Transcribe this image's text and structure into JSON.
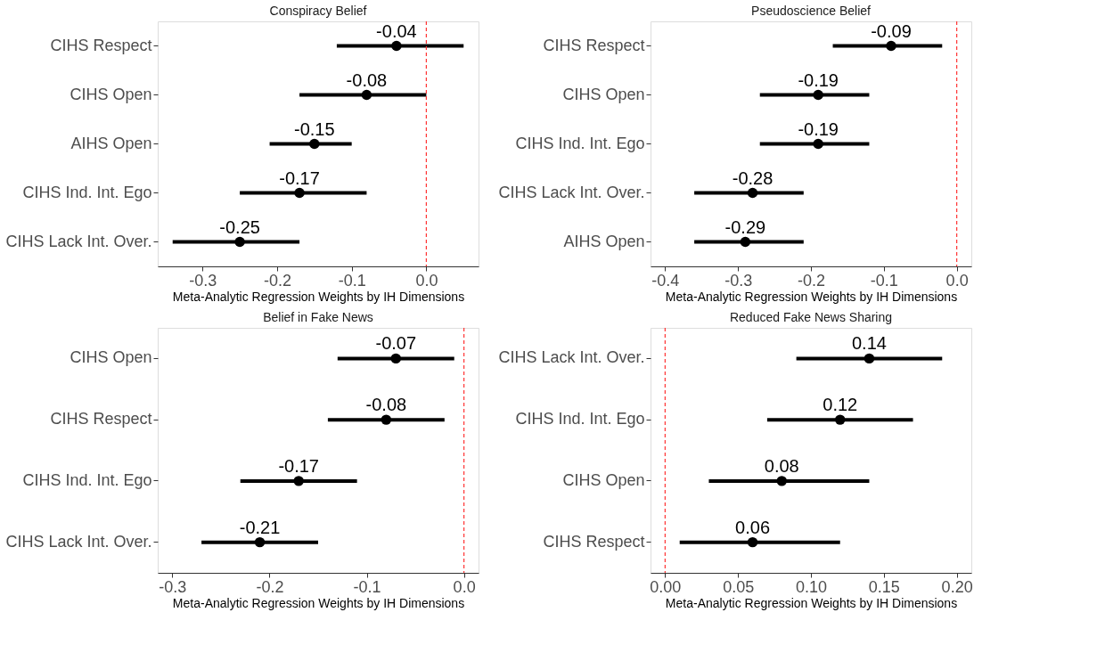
{
  "chart_data": [
    {
      "type": "scatter",
      "orientation": "horizontal",
      "title": "Conspiracy Belief",
      "xlabel": "Meta-Analytic Regression Weights by IH Dimensions",
      "categories": [
        "CIHS Respect",
        "CIHS Open",
        "AIHS Open",
        "CIHS Ind. Int. Ego",
        "CIHS Lack Int. Over."
      ],
      "series": [
        {
          "color": "#000000",
          "values": [
            -0.04,
            -0.08,
            -0.15,
            -0.17,
            -0.25
          ],
          "errors": [
            [
              -0.12,
              0.05
            ],
            [
              -0.17,
              0.0
            ],
            [
              -0.21,
              -0.1
            ],
            [
              -0.25,
              -0.08
            ],
            [
              -0.34,
              -0.17
            ]
          ]
        }
      ],
      "xlim": [
        -0.36,
        0.07
      ],
      "xticks": [
        -0.3,
        -0.2,
        -0.1,
        {
          "value": 0,
          "label": "0.0"
        }
      ],
      "ref_lines": [
        {
          "axis": "x",
          "value": 0,
          "color": "#ff3333",
          "line_style": "dashed"
        }
      ],
      "data_labels": true,
      "marker": "circle",
      "grid": false
    },
    {
      "type": "scatter",
      "orientation": "horizontal",
      "title": "Pseudoscience Belief",
      "xlabel": "Meta-Analytic Regression Weights by IH Dimensions",
      "categories": [
        "CIHS Respect",
        "CIHS Open",
        "CIHS Ind. Int. Ego",
        "CIHS Lack Int. Over.",
        "AIHS Open"
      ],
      "series": [
        {
          "color": "#000000",
          "values": [
            -0.09,
            -0.19,
            -0.19,
            -0.28,
            -0.29
          ],
          "errors": [
            [
              -0.17,
              -0.02
            ],
            [
              -0.27,
              -0.12
            ],
            [
              -0.27,
              -0.12
            ],
            [
              -0.36,
              -0.21
            ],
            [
              -0.36,
              -0.21
            ]
          ]
        }
      ],
      "xlim": [
        -0.42,
        0.02
      ],
      "xticks": [
        -0.4,
        -0.3,
        -0.2,
        -0.1,
        {
          "value": 0,
          "label": "0.0"
        }
      ],
      "ref_lines": [
        {
          "axis": "x",
          "value": 0,
          "color": "#ff3333",
          "line_style": "dashed"
        }
      ],
      "data_labels": true,
      "marker": "circle",
      "grid": false
    },
    {
      "type": "scatter",
      "orientation": "horizontal",
      "title": "Belief in Fake News",
      "xlabel": "Meta-Analytic Regression Weights by IH Dimensions",
      "categories": [
        "CIHS Open",
        "CIHS Respect",
        "CIHS Ind. Int. Ego",
        "CIHS Lack Int. Over."
      ],
      "series": [
        {
          "color": "#000000",
          "values": [
            -0.07,
            -0.08,
            -0.17,
            -0.21
          ],
          "errors": [
            [
              -0.13,
              -0.01
            ],
            [
              -0.14,
              -0.02
            ],
            [
              -0.23,
              -0.11
            ],
            [
              -0.27,
              -0.15
            ]
          ]
        }
      ],
      "xlim": [
        -0.315,
        0.015
      ],
      "xticks": [
        -0.3,
        -0.2,
        -0.1,
        {
          "value": 0,
          "label": "0.0"
        }
      ],
      "ref_lines": [
        {
          "axis": "x",
          "value": 0,
          "color": "#ff3333",
          "line_style": "dashed"
        }
      ],
      "data_labels": true,
      "marker": "circle",
      "grid": false
    },
    {
      "type": "scatter",
      "orientation": "horizontal",
      "title": "Reduced Fake News Sharing",
      "xlabel": "Meta-Analytic Regression Weights by IH Dimensions",
      "categories": [
        "CIHS Lack Int. Over.",
        "CIHS Ind. Int. Ego",
        "CIHS Open",
        "CIHS Respect"
      ],
      "series": [
        {
          "color": "#000000",
          "values": [
            0.14,
            0.12,
            0.08,
            0.06
          ],
          "errors": [
            [
              0.09,
              0.19
            ],
            [
              0.07,
              0.17
            ],
            [
              0.03,
              0.14
            ],
            [
              0.01,
              0.12
            ]
          ]
        }
      ],
      "xlim": [
        -0.01,
        0.21
      ],
      "xticks": [
        {
          "value": 0,
          "label": "0.00"
        },
        0.05,
        {
          "value": 0.1,
          "label": "0.10"
        },
        0.15,
        {
          "value": 0.2,
          "label": "0.20"
        }
      ],
      "ref_lines": [
        {
          "axis": "x",
          "value": 0,
          "color": "#ff3333",
          "line_style": "dashed"
        }
      ],
      "data_labels": true,
      "marker": "circle",
      "grid": false
    }
  ]
}
